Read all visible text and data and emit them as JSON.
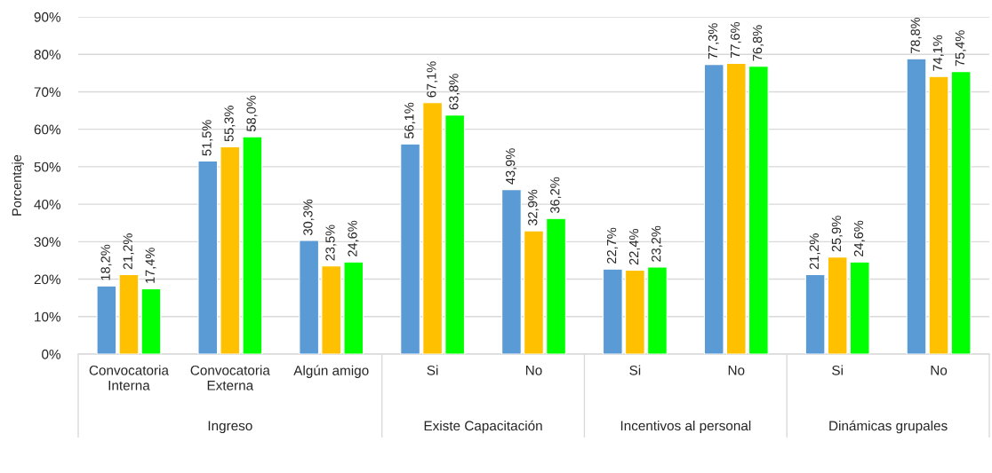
{
  "chart_data": {
    "type": "bar",
    "ylabel": "Porcentaje",
    "categories": [
      "Convocatoria Interna",
      "Convocatoria Externa",
      "Algún amigo",
      "Si",
      "No",
      "Si",
      "No",
      "Si",
      "No"
    ],
    "annotations": [
      "Ingreso",
      "Existe Capacitación",
      "Incentivos al personal",
      "Dinámicas grupales"
    ],
    "series": [
      {
        "color": "#5b9bd5",
        "values": [
          18.2,
          51.5,
          30.3,
          56.1,
          43.9,
          22.7,
          77.3,
          21.2,
          78.8
        ],
        "value_labels": [
          "18,2%",
          "51,5%",
          "30,3%",
          "56,1%",
          "43,9%",
          "22,7%",
          "77,3%",
          "21,2%",
          "78,8%"
        ]
      },
      {
        "color": "#ffc000",
        "values": [
          21.2,
          55.3,
          23.5,
          67.1,
          32.9,
          22.4,
          77.6,
          25.9,
          74.1
        ],
        "value_labels": [
          "21,2%",
          "55,3%",
          "23,5%",
          "67,1%",
          "32,9%",
          "22,4%",
          "77,6%",
          "25,9%",
          "74,1%"
        ]
      },
      {
        "color": "#00ff00",
        "values": [
          17.4,
          58.0,
          24.6,
          63.8,
          36.2,
          23.2,
          76.8,
          24.6,
          75.4
        ],
        "value_labels": [
          "17,4%",
          "58,0%",
          "24,6%",
          "63,8%",
          "36,2%",
          "23,2%",
          "76,8%",
          "24,6%",
          "75,4%"
        ]
      }
    ],
    "ylim": [
      0,
      90
    ],
    "yticks": [
      {
        "value": 0,
        "label": "0%"
      },
      {
        "value": 10,
        "label": "10%"
      },
      {
        "value": 20,
        "label": "20%"
      },
      {
        "value": 30,
        "label": "30%"
      },
      {
        "value": 40,
        "label": "40%"
      },
      {
        "value": 50,
        "label": "50%"
      },
      {
        "value": 60,
        "label": "60%"
      },
      {
        "value": 70,
        "label": "70%"
      },
      {
        "value": 80,
        "label": "80%"
      },
      {
        "value": 90,
        "label": "90%"
      }
    ],
    "grid": "y"
  }
}
